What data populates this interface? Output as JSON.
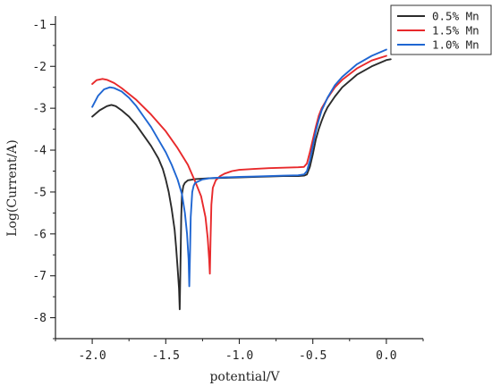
{
  "chart_data": {
    "type": "line",
    "xlabel": "potential/V",
    "ylabel": "Log(Current/A)",
    "xlim": [
      -2.25,
      0.25
    ],
    "ylim": [
      -8.5,
      -0.8
    ],
    "x_ticks": [
      -2.0,
      -1.5,
      -1.0,
      -0.5,
      0.0
    ],
    "x_tick_labels": [
      "-2.0",
      "-1.5",
      "-1.0",
      "-0.5",
      "0.0"
    ],
    "y_ticks": [
      -1,
      -2,
      -3,
      -4,
      -5,
      -6,
      -7,
      -8
    ],
    "y_tick_labels": [
      "-1",
      "-2",
      "-3",
      "-4",
      "-5",
      "-6",
      "-7",
      "-8"
    ],
    "grid": false,
    "legend_position": "top-right",
    "series": [
      {
        "name": "0.5% Mn",
        "color": "#2b2b2b",
        "x": [
          -2.0,
          -1.95,
          -1.9,
          -1.87,
          -1.84,
          -1.8,
          -1.75,
          -1.7,
          -1.65,
          -1.6,
          -1.55,
          -1.52,
          -1.5,
          -1.48,
          -1.46,
          -1.44,
          -1.43,
          -1.42,
          -1.41,
          -1.405,
          -1.4,
          -1.395,
          -1.39,
          -1.38,
          -1.37,
          -1.35,
          -1.3,
          -1.2,
          -1.1,
          -1.0,
          -0.9,
          -0.8,
          -0.7,
          -0.6,
          -0.56,
          -0.54,
          -0.52,
          -0.5,
          -0.48,
          -0.46,
          -0.44,
          -0.42,
          -0.4,
          -0.35,
          -0.3,
          -0.2,
          -0.1,
          0.0,
          0.03
        ],
        "y": [
          -3.2,
          -3.05,
          -2.95,
          -2.92,
          -2.95,
          -3.05,
          -3.2,
          -3.4,
          -3.65,
          -3.9,
          -4.2,
          -4.45,
          -4.7,
          -5.0,
          -5.4,
          -5.9,
          -6.3,
          -6.8,
          -7.3,
          -7.8,
          -6.8,
          -5.6,
          -5.05,
          -4.85,
          -4.78,
          -4.72,
          -4.69,
          -4.67,
          -4.66,
          -4.65,
          -4.64,
          -4.63,
          -4.62,
          -4.62,
          -4.61,
          -4.58,
          -4.4,
          -4.1,
          -3.75,
          -3.5,
          -3.3,
          -3.12,
          -2.98,
          -2.72,
          -2.5,
          -2.2,
          -2.0,
          -1.85,
          -1.83
        ]
      },
      {
        "name": "1.5% Mn",
        "color": "#e8292b",
        "x": [
          -2.0,
          -1.97,
          -1.93,
          -1.9,
          -1.85,
          -1.8,
          -1.7,
          -1.6,
          -1.5,
          -1.42,
          -1.35,
          -1.3,
          -1.26,
          -1.23,
          -1.215,
          -1.205,
          -1.2,
          -1.195,
          -1.19,
          -1.18,
          -1.16,
          -1.13,
          -1.1,
          -1.05,
          -1.0,
          -0.9,
          -0.8,
          -0.7,
          -0.6,
          -0.56,
          -0.54,
          -0.52,
          -0.5,
          -0.48,
          -0.46,
          -0.44,
          -0.42,
          -0.4,
          -0.35,
          -0.3,
          -0.2,
          -0.1,
          0.0
        ],
        "y": [
          -2.42,
          -2.33,
          -2.3,
          -2.32,
          -2.4,
          -2.52,
          -2.8,
          -3.15,
          -3.55,
          -3.95,
          -4.35,
          -4.75,
          -5.1,
          -5.6,
          -6.1,
          -6.6,
          -6.95,
          -6.1,
          -5.3,
          -4.9,
          -4.72,
          -4.62,
          -4.56,
          -4.5,
          -4.47,
          -4.45,
          -4.43,
          -4.42,
          -4.41,
          -4.4,
          -4.32,
          -4.05,
          -3.75,
          -3.45,
          -3.18,
          -3.0,
          -2.88,
          -2.76,
          -2.5,
          -2.32,
          -2.05,
          -1.86,
          -1.75
        ]
      },
      {
        "name": "1.0% Mn",
        "color": "#1f66d2",
        "x": [
          -2.0,
          -1.96,
          -1.92,
          -1.88,
          -1.85,
          -1.8,
          -1.75,
          -1.7,
          -1.65,
          -1.6,
          -1.55,
          -1.5,
          -1.46,
          -1.42,
          -1.39,
          -1.37,
          -1.355,
          -1.345,
          -1.34,
          -1.335,
          -1.33,
          -1.32,
          -1.31,
          -1.3,
          -1.25,
          -1.2,
          -1.1,
          -1.0,
          -0.9,
          -0.8,
          -0.7,
          -0.6,
          -0.56,
          -0.54,
          -0.52,
          -0.5,
          -0.48,
          -0.46,
          -0.44,
          -0.42,
          -0.4,
          -0.35,
          -0.3,
          -0.2,
          -0.1,
          0.0
        ],
        "y": [
          -2.97,
          -2.7,
          -2.55,
          -2.5,
          -2.52,
          -2.6,
          -2.75,
          -2.95,
          -3.2,
          -3.45,
          -3.75,
          -4.05,
          -4.35,
          -4.7,
          -5.05,
          -5.5,
          -6.0,
          -6.6,
          -7.25,
          -6.5,
          -5.6,
          -5.0,
          -4.85,
          -4.78,
          -4.7,
          -4.67,
          -4.65,
          -4.64,
          -4.63,
          -4.62,
          -4.61,
          -4.6,
          -4.58,
          -4.5,
          -4.25,
          -3.9,
          -3.55,
          -3.28,
          -3.05,
          -2.9,
          -2.75,
          -2.45,
          -2.25,
          -1.95,
          -1.75,
          -1.6
        ]
      }
    ]
  }
}
